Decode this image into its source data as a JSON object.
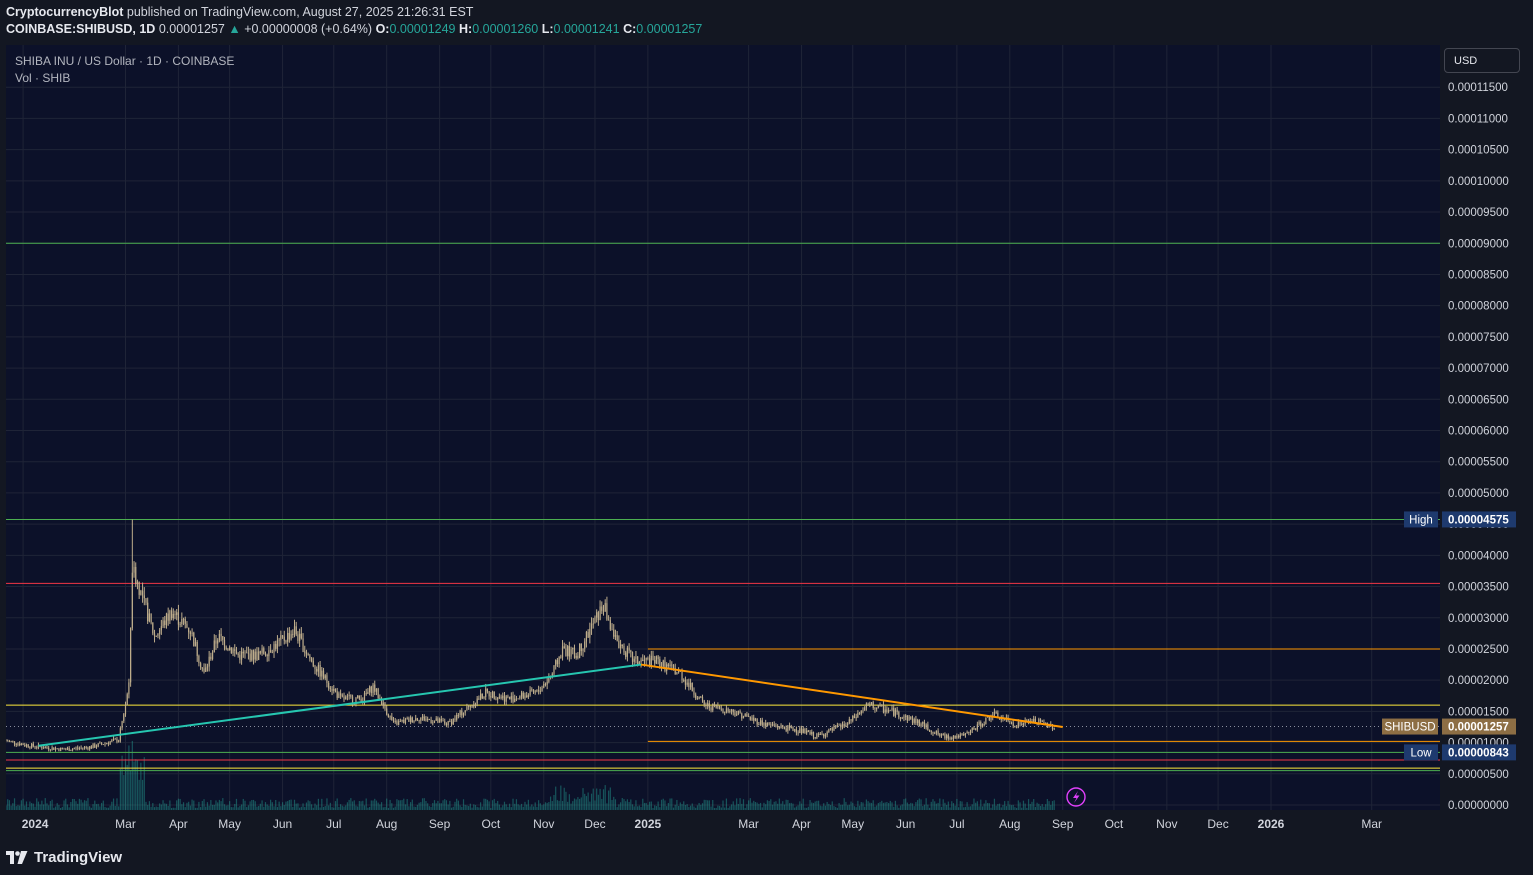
{
  "header": {
    "author": "CryptocurrencyBlot",
    "published_text": "published on TradingView.com, August 27, 2025 21:26:31 EST",
    "symbol": "COINBASE:SHIBUSD, 1D",
    "last": "0.00001257",
    "change": "+0.00000008 (+0.64%)",
    "o_label": "O:",
    "o_value": "0.00001249",
    "h_label": "H:",
    "h_value": "0.00001260",
    "l_label": "L:",
    "l_value": "0.00001241",
    "c_label": "C:",
    "c_value": "0.00001257"
  },
  "legend": {
    "title": "SHIBA INU / US Dollar · 1D · COINBASE",
    "volume": "Vol · SHIB"
  },
  "currency_button": "USD",
  "footer": {
    "brand": "TradingView"
  },
  "colors": {
    "background": "#131722",
    "plot_bg": "#0c1129",
    "grid": "#1f2437",
    "candle": "#bfae8c",
    "volume": "#26a69a",
    "teal_trend": "#26c6b0",
    "orange_trend": "#ff9800",
    "red_level": "#f23645",
    "green_level": "#4caf50",
    "yellow_level": "#ffeb3b",
    "high_low_label": "#1e3a6e",
    "price_label": "#8d6e44"
  },
  "chart_data": {
    "type": "candlestick",
    "title": "SHIBA INU / US Dollar · 1D · COINBASE",
    "x_tick_labels": [
      "2024",
      "Mar",
      "Apr",
      "May",
      "Jun",
      "Jul",
      "Aug",
      "Sep",
      "Oct",
      "Nov",
      "Dec",
      "2025",
      "Mar",
      "Apr",
      "May",
      "Jun",
      "Jul",
      "Aug",
      "Sep",
      "Oct",
      "Nov",
      "Dec",
      "2026",
      "Mar"
    ],
    "x_tick_dates": [
      "2024-01-01",
      "2024-03-01",
      "2024-04-01",
      "2024-05-01",
      "2024-06-01",
      "2024-07-01",
      "2024-08-01",
      "2024-09-01",
      "2024-10-01",
      "2024-11-01",
      "2024-12-01",
      "2025-01-01",
      "2025-03-01",
      "2025-04-01",
      "2025-05-01",
      "2025-06-01",
      "2025-07-01",
      "2025-08-01",
      "2025-09-01",
      "2025-10-01",
      "2025-11-01",
      "2025-12-01",
      "2026-01-01",
      "2026-03-01"
    ],
    "y_tick_labels": [
      "0.00000000",
      "0.00000500",
      "0.00001000",
      "0.00001500",
      "0.00002000",
      "0.00002500",
      "0.00003000",
      "0.00003500",
      "0.00004000",
      "0.00004500",
      "0.00005000",
      "0.00005500",
      "0.00006000",
      "0.00006500",
      "0.00007000",
      "0.00007500",
      "0.00008000",
      "0.00008500",
      "0.00009000",
      "0.00009500",
      "0.00010000",
      "0.00010500",
      "0.00011000",
      "0.00011500"
    ],
    "y_ticks": [
      0,
      5e-06,
      1e-05,
      1.5e-05,
      2e-05,
      2.5e-05,
      3e-05,
      3.5e-05,
      4e-05,
      4.5e-05,
      5e-05,
      5.5e-05,
      6e-05,
      6.5e-05,
      7e-05,
      7.5e-05,
      8e-05,
      8.5e-05,
      9e-05,
      9.5e-05,
      0.0001,
      0.000105,
      0.00011,
      0.000115
    ],
    "ylim": [
      0,
      0.00012
    ],
    "xlim": [
      "2023-12-22",
      "2026-04-10"
    ],
    "close_path": [
      [
        "2023-12-22",
        1.03e-05
      ],
      [
        "2024-01-05",
        9.5e-06
      ],
      [
        "2024-01-25",
        8.9e-06
      ],
      [
        "2024-02-10",
        9.3e-06
      ],
      [
        "2024-02-26",
        1.05e-05
      ],
      [
        "2024-03-03",
        1.9e-05
      ],
      [
        "2024-03-05",
        3.8e-05
      ],
      [
        "2024-03-10",
        3.4e-05
      ],
      [
        "2024-03-18",
        2.7e-05
      ],
      [
        "2024-03-28",
        3.1e-05
      ],
      [
        "2024-04-08",
        2.8e-05
      ],
      [
        "2024-04-16",
        2.1e-05
      ],
      [
        "2024-04-24",
        2.7e-05
      ],
      [
        "2024-05-06",
        2.4e-05
      ],
      [
        "2024-05-18",
        2.4e-05
      ],
      [
        "2024-05-30",
        2.6e-05
      ],
      [
        "2024-06-08",
        2.8e-05
      ],
      [
        "2024-06-18",
        2.3e-05
      ],
      [
        "2024-07-05",
        1.7e-05
      ],
      [
        "2024-07-18",
        1.7e-05
      ],
      [
        "2024-07-24",
        1.9e-05
      ],
      [
        "2024-08-05",
        1.3e-05
      ],
      [
        "2024-08-20",
        1.4e-05
      ],
      [
        "2024-09-06",
        1.3e-05
      ],
      [
        "2024-09-28",
        1.8e-05
      ],
      [
        "2024-10-12",
        1.7e-05
      ],
      [
        "2024-10-28",
        1.8e-05
      ],
      [
        "2024-11-06",
        2.1e-05
      ],
      [
        "2024-11-12",
        2.5e-05
      ],
      [
        "2024-11-20",
        2.4e-05
      ],
      [
        "2024-12-06",
        3.2e-05
      ],
      [
        "2024-12-12",
        2.7e-05
      ],
      [
        "2024-12-24",
        2.3e-05
      ],
      [
        "2025-01-06",
        2.3e-05
      ],
      [
        "2025-01-20",
        2.1e-05
      ],
      [
        "2025-02-03",
        1.6e-05
      ],
      [
        "2025-02-20",
        1.5e-05
      ],
      [
        "2025-03-10",
        1.3e-05
      ],
      [
        "2025-03-30",
        1.2e-05
      ],
      [
        "2025-04-10",
        1.1e-05
      ],
      [
        "2025-04-28",
        1.3e-05
      ],
      [
        "2025-05-10",
        1.6e-05
      ],
      [
        "2025-05-24",
        1.5e-05
      ],
      [
        "2025-06-10",
        1.3e-05
      ],
      [
        "2025-06-22",
        1.1e-05
      ],
      [
        "2025-07-05",
        1.1e-05
      ],
      [
        "2025-07-15",
        1.3e-05
      ],
      [
        "2025-07-22",
        1.45e-05
      ],
      [
        "2025-08-05",
        1.28e-05
      ],
      [
        "2025-08-14",
        1.35e-05
      ],
      [
        "2025-08-27",
        1.257e-05
      ]
    ],
    "peaks": [
      [
        "2024-03-05",
        4.575e-05
      ]
    ],
    "volume_note": "Vol · SHIB",
    "horizontal_levels": [
      {
        "price": 9e-05,
        "color": "green"
      },
      {
        "price": 4.575e-05,
        "color": "green"
      },
      {
        "price": 3.55e-05,
        "color": "red"
      },
      {
        "price": 2.5e-05,
        "color": "orange",
        "from": "2025-01-01"
      },
      {
        "price": 1.6e-05,
        "color": "yellow"
      },
      {
        "price": 1.02e-05,
        "color": "orange",
        "from": "2025-01-01"
      },
      {
        "price": 8.43e-06,
        "color": "green"
      },
      {
        "price": 7.2e-06,
        "color": "red"
      },
      {
        "price": 5.9e-06,
        "color": "yellow"
      },
      {
        "price": 5.5e-06,
        "color": "green"
      }
    ],
    "trend_lines": [
      {
        "color": "teal",
        "from": [
          "2024-01-10",
          9.5e-06
        ],
        "to": [
          "2024-12-28",
          2.25e-05
        ]
      },
      {
        "color": "orange",
        "from": [
          "2024-12-28",
          2.25e-05
        ],
        "to": [
          "2025-09-01",
          1.25e-05
        ]
      }
    ],
    "price_labels": [
      {
        "name": "High",
        "value": "0.00004575",
        "price": 4.575e-05
      },
      {
        "name": "SHIBUSD",
        "value": "0.00001257",
        "price": 1.257e-05
      },
      {
        "name": "Low",
        "value": "0.00000843",
        "price": 8.43e-06
      }
    ],
    "grid": true
  }
}
